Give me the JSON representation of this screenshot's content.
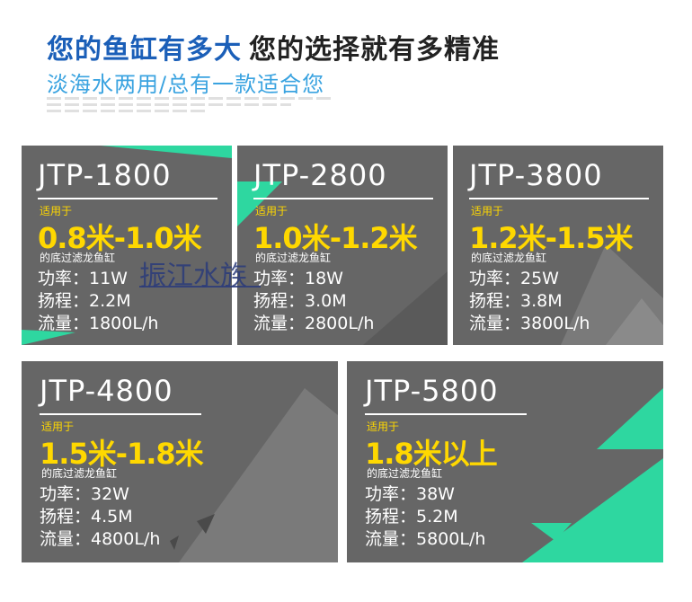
{
  "header": {
    "title_part1": "您的鱼缸有多大",
    "title_part2": "您的选择就有多精准",
    "subtitle": "淡海水两用/总有一款适合您"
  },
  "colors": {
    "accent_green": "#2ed7a0",
    "accent_yellow": "#ffd800",
    "card_bg": "#666666",
    "title_blue": "#1b5fb8"
  },
  "watermark": "振江水族",
  "products": [
    {
      "model": "JTP-1800",
      "suitable_label": "适用于",
      "range": "0.8米-1.0米",
      "tank_label": "的底过滤龙鱼缸",
      "power": "功率：11W",
      "head": "扬程：2.2M",
      "flow": "流量：1800L/h"
    },
    {
      "model": "JTP-2800",
      "suitable_label": "适用于",
      "range": "1.0米-1.2米",
      "tank_label": "的底过滤龙鱼缸",
      "power": "功率：18W",
      "head": "扬程：3.0M",
      "flow": "流量：2800L/h"
    },
    {
      "model": "JTP-3800",
      "suitable_label": "适用于",
      "range": "1.2米-1.5米",
      "tank_label": "的底过滤龙鱼缸",
      "power": "功率：25W",
      "head": "扬程：3.8M",
      "flow": "流量：3800L/h"
    },
    {
      "model": "JTP-4800",
      "suitable_label": "适用于",
      "range": "1.5米-1.8米",
      "tank_label": "的底过滤龙鱼缸",
      "power": "功率：32W",
      "head": "扬程：4.5M",
      "flow": "流量：4800L/h"
    },
    {
      "model": "JTP-5800",
      "suitable_label": "适用于",
      "range": "1.8米以上",
      "tank_label": "的底过滤龙鱼缸",
      "power": "功率：38W",
      "head": "扬程：5.2M",
      "flow": "流量：5800L/h"
    }
  ]
}
